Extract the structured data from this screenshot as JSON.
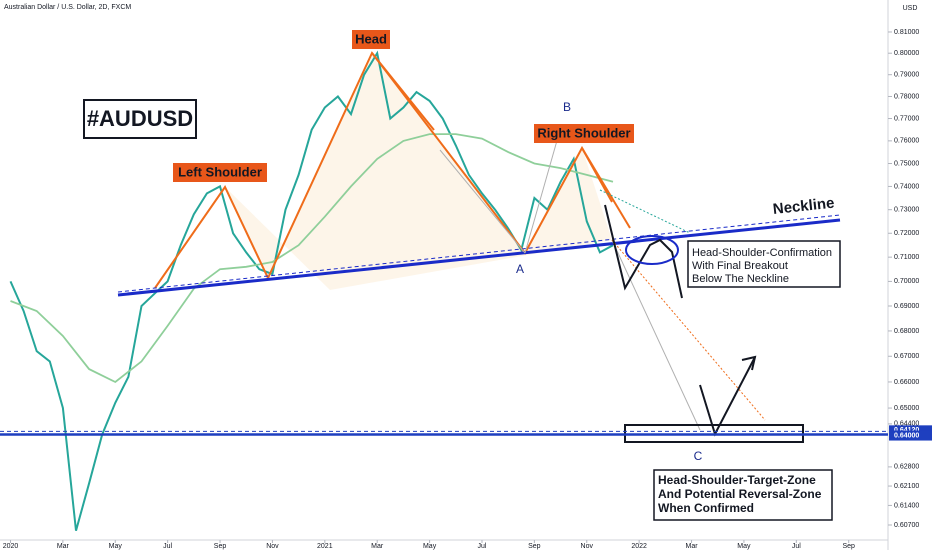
{
  "chart_data": {
    "type": "line",
    "title": "Australian Dollar / U.S. Dollar, 2D, FXCM",
    "currency": "USD",
    "log_scale": true,
    "xlim": [
      -0.4,
      33.5
    ],
    "xticks": [
      {
        "value": 0,
        "label": "2020"
      },
      {
        "value": 2,
        "label": "Mar"
      },
      {
        "value": 4,
        "label": "May"
      },
      {
        "value": 6,
        "label": "Jul"
      },
      {
        "value": 8,
        "label": "Sep"
      },
      {
        "value": 10,
        "label": "Nov"
      },
      {
        "value": 12,
        "label": "2021"
      },
      {
        "value": 14,
        "label": "Mar"
      },
      {
        "value": 16,
        "label": "May"
      },
      {
        "value": 18,
        "label": "Jul"
      },
      {
        "value": 20,
        "label": "Sep"
      },
      {
        "value": 22,
        "label": "Nov"
      },
      {
        "value": 24,
        "label": "2022"
      },
      {
        "value": 26,
        "label": "Mar"
      },
      {
        "value": 28,
        "label": "May"
      },
      {
        "value": 30,
        "label": "Jul"
      },
      {
        "value": 32,
        "label": "Sep"
      }
    ],
    "ylim": [
      0.6017,
      0.8253
    ],
    "yticks": [
      {
        "value": 0.81,
        "label": "0.81000"
      },
      {
        "value": 0.8,
        "label": "0.80000"
      },
      {
        "value": 0.79,
        "label": "0.79000"
      },
      {
        "value": 0.78,
        "label": "0.78000"
      },
      {
        "value": 0.77,
        "label": "0.77000"
      },
      {
        "value": 0.76,
        "label": "0.76000"
      },
      {
        "value": 0.75,
        "label": "0.75000"
      },
      {
        "value": 0.74,
        "label": "0.74000"
      },
      {
        "value": 0.73,
        "label": "0.73000"
      },
      {
        "value": 0.72,
        "label": "0.72000"
      },
      {
        "value": 0.71,
        "label": "0.71000"
      },
      {
        "value": 0.7,
        "label": "0.70000"
      },
      {
        "value": 0.69,
        "label": "0.69000"
      },
      {
        "value": 0.68,
        "label": "0.68000"
      },
      {
        "value": 0.67,
        "label": "0.67000"
      },
      {
        "value": 0.66,
        "label": "0.66000"
      },
      {
        "value": 0.65,
        "label": "0.65000"
      },
      {
        "value": 0.644,
        "label": "0.64400"
      },
      {
        "value": 0.628,
        "label": "0.62800"
      },
      {
        "value": 0.621,
        "label": "0.62100"
      },
      {
        "value": 0.614,
        "label": "0.61400"
      },
      {
        "value": 0.607,
        "label": "0.60700"
      }
    ],
    "price_lines": [
      {
        "value": 0.6412,
        "label": "0.64120",
        "color": "#1e3fbf",
        "dashed": true
      },
      {
        "value": 0.64,
        "label": "0.64000",
        "color": "#1e3fbf",
        "dashed": false
      }
    ],
    "series": [
      {
        "color": "#26a69a",
        "x": [
          0,
          0.5,
          1,
          1.5,
          2,
          2.5,
          3,
          3.5,
          4,
          4.5,
          5,
          5.5,
          6,
          6.5,
          7,
          7.5,
          8,
          8.5,
          9,
          9.5,
          10,
          10.5,
          11,
          11.5,
          12,
          12.5,
          13,
          13.5,
          14,
          14.5,
          15,
          15.5,
          16,
          16.5,
          17,
          17.5,
          18,
          18.5,
          19,
          19.5,
          20,
          20.5,
          21,
          21.5,
          22,
          22.5,
          23
        ],
        "values": [
          0.7,
          0.688,
          0.672,
          0.668,
          0.65,
          0.605,
          0.622,
          0.64,
          0.652,
          0.662,
          0.69,
          0.695,
          0.7,
          0.715,
          0.728,
          0.737,
          0.74,
          0.72,
          0.712,
          0.705,
          0.703,
          0.73,
          0.745,
          0.765,
          0.775,
          0.78,
          0.772,
          0.79,
          0.8,
          0.77,
          0.775,
          0.782,
          0.778,
          0.77,
          0.758,
          0.745,
          0.737,
          0.73,
          0.722,
          0.713,
          0.735,
          0.73,
          0.742,
          0.752,
          0.725,
          0.712,
          0.715
        ]
      },
      {
        "color": "#8fcf9a",
        "x": [
          0,
          1,
          2,
          3,
          4,
          5,
          6,
          7,
          8,
          9,
          10,
          11,
          12,
          13,
          14,
          15,
          16,
          17,
          18,
          19,
          20,
          21,
          22,
          23
        ],
        "values": [
          0.692,
          0.688,
          0.678,
          0.665,
          0.66,
          0.668,
          0.682,
          0.697,
          0.705,
          0.706,
          0.708,
          0.715,
          0.727,
          0.74,
          0.752,
          0.76,
          0.763,
          0.763,
          0.761,
          0.755,
          0.75,
          0.748,
          0.745,
          0.742
        ]
      }
    ],
    "annotations": {
      "symbol": "#AUDUSD",
      "head": "Head",
      "left_shoulder": "Left Shoulder",
      "right_shoulder": "Right Shoulder",
      "neckline": "Neckline",
      "point_a": "A",
      "point_b": "B",
      "point_c": "C",
      "confirmation": [
        "Head-Shoulder-Confirmation",
        "With Final Breakout",
        "Below The Neckline"
      ],
      "target": [
        "Head-Shoulder-Target-Zone",
        "And Potential Reversal-Zone",
        "When Confirmed"
      ]
    }
  }
}
